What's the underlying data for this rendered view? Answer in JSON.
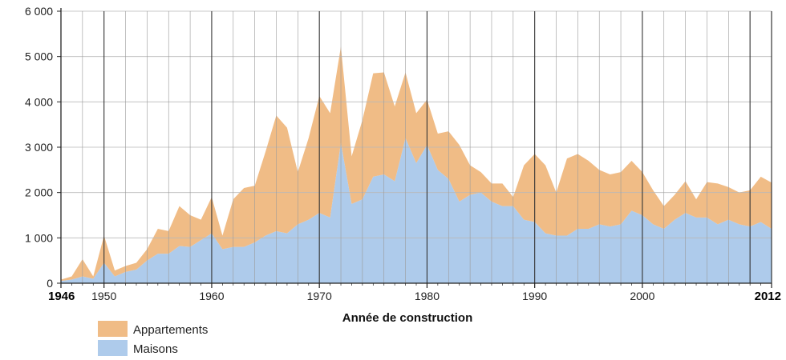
{
  "chart_data": {
    "type": "area",
    "stacked": true,
    "xlabel": "Année de construction",
    "ylabel": "",
    "xlim": [
      1946,
      2012
    ],
    "ylim": [
      0,
      6000
    ],
    "y_ticks": [
      0,
      1000,
      2000,
      3000,
      4000,
      5000,
      6000
    ],
    "y_tick_labels": [
      "0",
      "1 000",
      "2 000",
      "3 000",
      "4 000",
      "5 000",
      "6 000"
    ],
    "x_ticks": [
      1946,
      1950,
      1960,
      1970,
      1980,
      1990,
      2000,
      2012
    ],
    "x_tick_labels": [
      "1946",
      "1950",
      "1960",
      "1970",
      "1980",
      "1990",
      "2000",
      "2012"
    ],
    "x_tick_bold": [
      true,
      false,
      false,
      false,
      false,
      false,
      false,
      true
    ],
    "grid": true,
    "legend_position": "bottom-left",
    "x": [
      1946,
      1947,
      1948,
      1949,
      1950,
      1951,
      1952,
      1953,
      1954,
      1955,
      1956,
      1957,
      1958,
      1959,
      1960,
      1961,
      1962,
      1963,
      1964,
      1965,
      1966,
      1967,
      1968,
      1969,
      1970,
      1971,
      1972,
      1973,
      1974,
      1975,
      1976,
      1977,
      1978,
      1979,
      1980,
      1981,
      1982,
      1983,
      1984,
      1985,
      1986,
      1987,
      1988,
      1989,
      1990,
      1991,
      1992,
      1993,
      1994,
      1995,
      1996,
      1997,
      1998,
      1999,
      2000,
      2001,
      2002,
      2003,
      2004,
      2005,
      2006,
      2007,
      2008,
      2009,
      2010,
      2011,
      2012
    ],
    "series": [
      {
        "name": "Maisons",
        "color": "#aecbeb",
        "values": [
          50,
          80,
          150,
          100,
          450,
          150,
          250,
          300,
          500,
          650,
          650,
          820,
          800,
          950,
          1100,
          750,
          800,
          800,
          900,
          1050,
          1150,
          1100,
          1300,
          1400,
          1550,
          1450,
          3100,
          1750,
          1850,
          2350,
          2400,
          2250,
          3200,
          2650,
          3050,
          2500,
          2300,
          1800,
          1950,
          2000,
          1800,
          1700,
          1700,
          1400,
          1350,
          1100,
          1050,
          1050,
          1200,
          1200,
          1300,
          1250,
          1300,
          1600,
          1500,
          1300,
          1200,
          1400,
          1550,
          1450,
          1450,
          1300,
          1400,
          1300,
          1250,
          1350,
          1200
        ]
      },
      {
        "name": "Appartements",
        "color": "#f0bc86",
        "values": [
          30,
          70,
          380,
          50,
          600,
          130,
          130,
          150,
          250,
          550,
          500,
          880,
          700,
          450,
          800,
          300,
          1050,
          1300,
          1250,
          1850,
          2550,
          2330,
          1150,
          1800,
          2580,
          2300,
          2120,
          1050,
          1750,
          2280,
          2250,
          1650,
          1450,
          1100,
          1000,
          800,
          1050,
          1250,
          650,
          450,
          400,
          500,
          200,
          1200,
          1500,
          1500,
          950,
          1700,
          1650,
          1500,
          1200,
          1150,
          1150,
          1100,
          950,
          750,
          500,
          550,
          700,
          400,
          780,
          900,
          720,
          700,
          800,
          1000,
          1020
        ]
      }
    ]
  }
}
